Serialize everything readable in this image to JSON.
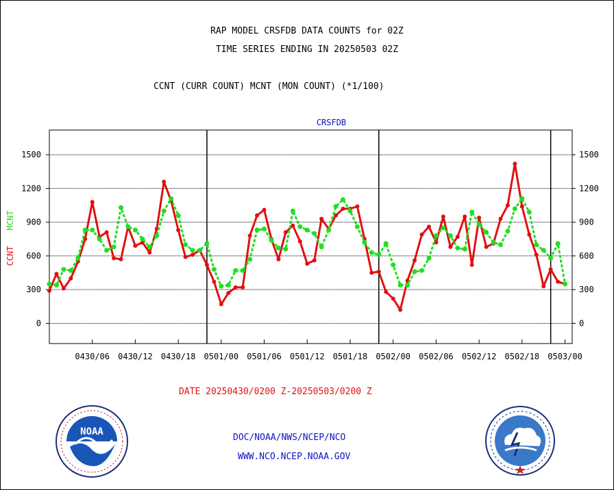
{
  "header": {
    "title_line1": "RAP MODEL CRSFDB DATA COUNTS for 02Z",
    "title_line2": "TIME SERIES ENDING IN 20250503 02Z",
    "subtitle": "CCNT (CURR COUNT) MCNT (MON COUNT) (*1/100)"
  },
  "footer": {
    "date_range": "DATE 20250430/0200 Z-20250503/0200 Z",
    "org_line1": "DOC/NOAA/NWS/NCEP/NCO",
    "org_line2": "WWW.NCO.NCEP.NOAA.GOV"
  },
  "logos": {
    "left": {
      "name": "noaa-logo",
      "text": "NOAA",
      "ring_text": "NATIONAL OCEANIC AND ATMOSPHERIC ADMINISTRATION · U.S. DEPARTMENT OF COMMERCE"
    },
    "right": {
      "name": "nws-logo",
      "ring_text": "NATIONAL WEATHER SERVICE"
    }
  },
  "colors": {
    "ccnt": "#e01010",
    "mcnt": "#22dd22",
    "text_blue": "#1010c8"
  },
  "chart_data": {
    "type": "line",
    "title": "CRSFDB",
    "ylabel_left": [
      "CCNT",
      "MCNT"
    ],
    "ylim": [
      -180,
      1720
    ],
    "yticks": [
      0,
      300,
      600,
      900,
      1200,
      1500
    ],
    "x_start_hour": 0,
    "x_end_hour": 73,
    "x_tick_hours": [
      6,
      12,
      18,
      24,
      30,
      36,
      42,
      48,
      54,
      60,
      66,
      72
    ],
    "x_tick_labels": [
      "0430/06",
      "0430/12",
      "0430/18",
      "0501/00",
      "0501/06",
      "0501/12",
      "0501/18",
      "0502/00",
      "0502/06",
      "0502/12",
      "0502/18",
      "0503/00"
    ],
    "day_boundaries_hours": [
      22,
      46,
      70
    ],
    "grid": true,
    "series": [
      {
        "name": "CCNT",
        "style": "solid",
        "values": [
          290,
          440,
          310,
          400,
          550,
          750,
          1080,
          770,
          810,
          580,
          570,
          860,
          690,
          720,
          630,
          840,
          1260,
          1090,
          830,
          590,
          610,
          650,
          520,
          370,
          170,
          270,
          320,
          320,
          780,
          960,
          1010,
          750,
          570,
          810,
          870,
          730,
          530,
          560,
          930,
          840,
          960,
          1020,
          1020,
          1040,
          750,
          450,
          460,
          280,
          220,
          120,
          380,
          560,
          790,
          860,
          720,
          950,
          680,
          770,
          950,
          520,
          940,
          680,
          710,
          930,
          1050,
          1420,
          1040,
          790,
          610,
          330,
          480,
          370,
          350
        ]
      },
      {
        "name": "MCNT",
        "style": "dotted",
        "values": [
          350,
          340,
          480,
          470,
          580,
          830,
          830,
          750,
          650,
          680,
          1030,
          860,
          830,
          750,
          680,
          780,
          1000,
          1110,
          960,
          700,
          650,
          650,
          710,
          480,
          330,
          340,
          470,
          470,
          570,
          830,
          840,
          740,
          670,
          660,
          1000,
          860,
          830,
          800,
          680,
          830,
          1040,
          1100,
          1000,
          860,
          720,
          630,
          610,
          710,
          520,
          340,
          340,
          460,
          470,
          580,
          780,
          850,
          780,
          670,
          660,
          990,
          880,
          810,
          720,
          700,
          820,
          1020,
          1110,
          990,
          700,
          650,
          580,
          710,
          350
        ]
      }
    ]
  }
}
